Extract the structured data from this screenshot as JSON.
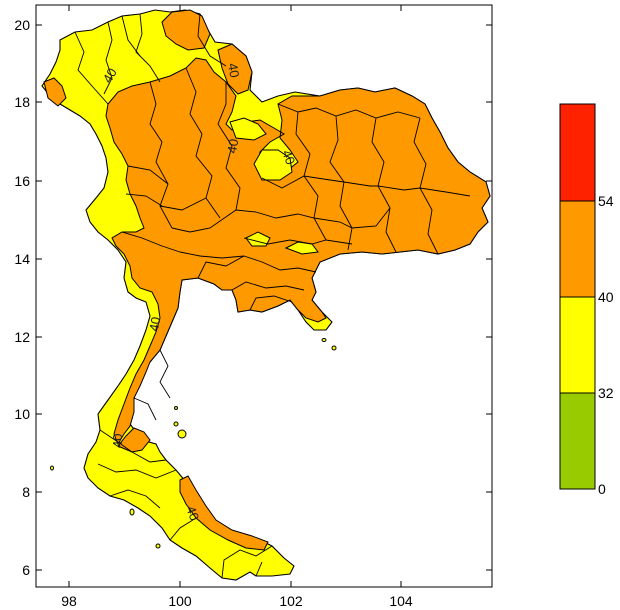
{
  "map": {
    "x_ticks": [
      "98",
      "100",
      "102",
      "104"
    ],
    "y_ticks": [
      "20",
      "18",
      "16",
      "14",
      "12",
      "10",
      "8",
      "6"
    ],
    "contour_labels": [
      "40",
      "40",
      "40",
      "40",
      "40",
      "40",
      "40"
    ]
  },
  "legend": {
    "bins": [
      {
        "color": "#99cc00",
        "from": 0,
        "to": 32
      },
      {
        "color": "#ffff00",
        "from": 32,
        "to": 40
      },
      {
        "color": "#ff9900",
        "from": 40,
        "to": 54
      },
      {
        "color": "#ff2200",
        "from": 54,
        "to": null
      }
    ],
    "labels": [
      "0",
      "32",
      "40",
      "54"
    ]
  },
  "colors": {
    "yellow": "#ffff00",
    "orange": "#ff9900",
    "border": "#000000"
  }
}
